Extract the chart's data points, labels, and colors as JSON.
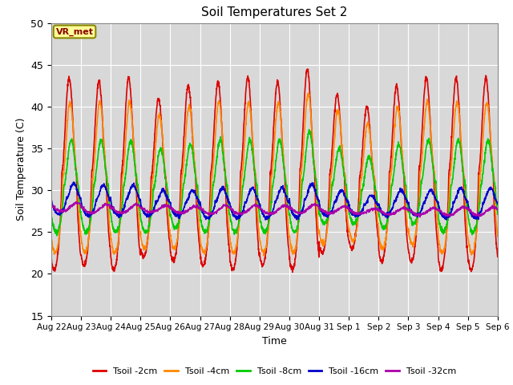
{
  "title": "Soil Temperatures Set 2",
  "xlabel": "Time",
  "ylabel": "Soil Temperature (C)",
  "ylim": [
    15,
    50
  ],
  "yticks": [
    15,
    20,
    25,
    30,
    35,
    40,
    45,
    50
  ],
  "plot_bg_color": "#d8d8d8",
  "fig_bg_color": "#ffffff",
  "grid_color": "#ffffff",
  "legend_labels": [
    "Tsoil -2cm",
    "Tsoil -4cm",
    "Tsoil -8cm",
    "Tsoil -16cm",
    "Tsoil -32cm"
  ],
  "line_colors": [
    "#dd0000",
    "#ff8800",
    "#00cc00",
    "#0000cc",
    "#aa00aa"
  ],
  "line_widths": [
    1.2,
    1.2,
    1.2,
    1.2,
    1.2
  ],
  "n_days": 15,
  "xtick_labels": [
    "Aug 22",
    "Aug 23",
    "Aug 24",
    "Aug 25",
    "Aug 26",
    "Aug 27",
    "Aug 28",
    "Aug 29",
    "Aug 30",
    "Aug 31",
    "Sep 1",
    "Sep 2",
    "Sep 3",
    "Sep 4",
    "Sep 5",
    "Sep 6"
  ],
  "annotation_text": "VR_met",
  "annotation_color": "#880000",
  "annotation_bg": "#ffff99",
  "annotation_border": "#888800",
  "pts_per_day": 144,
  "mean2": 32.0,
  "mean4": 31.5,
  "mean8": 30.5,
  "mean16": 28.8,
  "mean32": 27.8,
  "amp2": 11.5,
  "amp4": 9.5,
  "amp8": 6.0,
  "amp16": 1.8,
  "amp32": 0.5,
  "ph2": 0.35,
  "ph4": 0.38,
  "ph8": 0.42,
  "ph16": 0.5,
  "ph32": 0.6
}
